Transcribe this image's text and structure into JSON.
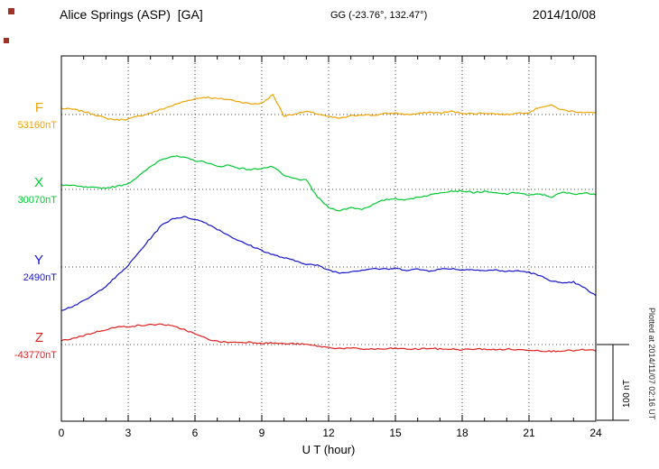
{
  "header": {
    "station": "Alice Springs (ASP)  [GA]",
    "coordinates": "GG (-23.76°, 132.47°)",
    "date": "2014/10/08"
  },
  "plot_note": "Plotted at 2014/11/07 02:16 UT",
  "chart_data": {
    "type": "line",
    "title": "Alice Springs (ASP) [GA] magnetogram 2014/10/08",
    "xlabel": "U T (hour)",
    "ylabel": "",
    "units": "nT",
    "xlim": [
      0,
      24
    ],
    "x_ticks": [
      0,
      3,
      6,
      9,
      12,
      15,
      18,
      21,
      24
    ],
    "x_step_hours": 0.5,
    "grid": "dotted",
    "scale_bar_label": "100 nT",
    "scale_bar_nT": 100,
    "series": [
      {
        "name": "F",
        "baseline_label": "53160nT",
        "color": "#f0a202",
        "offsets_nT": [
          8,
          7,
          4,
          0,
          -5,
          -7,
          -6,
          -2,
          2,
          7,
          12,
          17,
          21,
          23,
          21,
          20,
          17,
          14,
          15,
          26,
          -2,
          1,
          4,
          1,
          -3,
          -5,
          -2,
          0,
          -1,
          1,
          2,
          0,
          1,
          3,
          2,
          4,
          2,
          1,
          2,
          1,
          0,
          2,
          3,
          10,
          12,
          6,
          4,
          3,
          2
        ]
      },
      {
        "name": "X",
        "baseline_label": "30070nT",
        "color": "#00c832",
        "offsets_nT": [
          6,
          5,
          3,
          2,
          2,
          4,
          8,
          18,
          30,
          40,
          44,
          42,
          38,
          36,
          30,
          32,
          28,
          26,
          28,
          30,
          18,
          14,
          12,
          -10,
          -24,
          -28,
          -24,
          -26,
          -20,
          -14,
          -12,
          -14,
          -10,
          -8,
          -4,
          -2,
          -2,
          -4,
          -3,
          -5,
          -6,
          -4,
          -8,
          -6,
          -10,
          -4,
          -6,
          -5,
          -6
        ]
      },
      {
        "name": "Y",
        "baseline_label": "2490nT",
        "color": "#1414cc",
        "offsets_nT": [
          -57,
          -52,
          -45,
          -36,
          -25,
          -12,
          2,
          20,
          38,
          55,
          64,
          66,
          63,
          58,
          50,
          42,
          34,
          28,
          22,
          16,
          12,
          8,
          4,
          2,
          -4,
          -8,
          -6,
          -4,
          -2,
          -3,
          -2,
          -4,
          -3,
          -5,
          -3,
          -2,
          -4,
          -3,
          -5,
          -4,
          -6,
          -5,
          -7,
          -12,
          -18,
          -22,
          -20,
          -28,
          -38
        ]
      },
      {
        "name": "Z",
        "baseline_label": "-43770nT",
        "color": "#e02020",
        "offsets_nT": [
          5,
          8,
          12,
          16,
          20,
          23,
          24,
          25,
          26,
          27,
          24,
          20,
          14,
          8,
          4,
          3,
          3,
          3,
          2,
          2,
          1,
          1,
          0,
          -2,
          -4,
          -5,
          -5,
          -6,
          -6,
          -6,
          -5,
          -6,
          -6,
          -5,
          -6,
          -6,
          -7,
          -6,
          -6,
          -7,
          -6,
          -7,
          -7,
          -8,
          -9,
          -8,
          -8,
          -7,
          -8
        ]
      }
    ]
  }
}
